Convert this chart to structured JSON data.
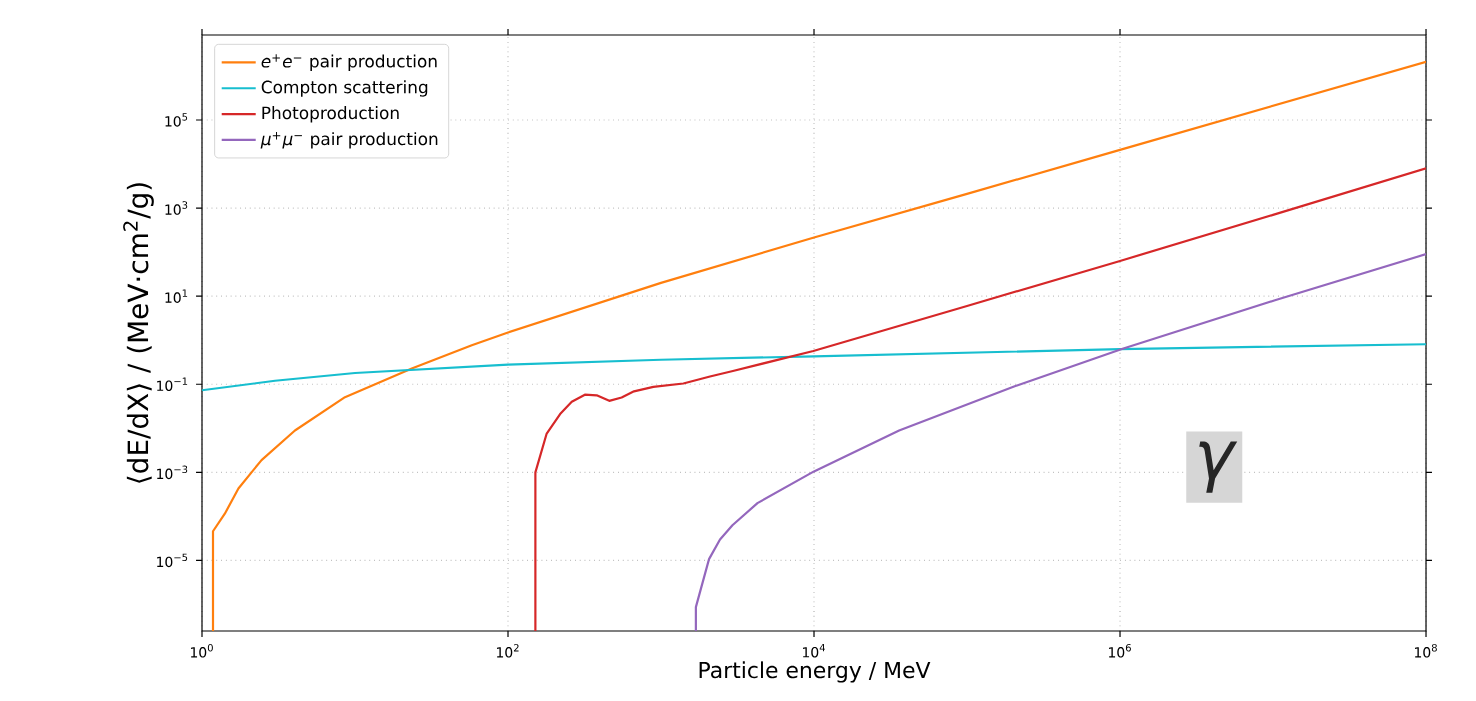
{
  "chart_data": {
    "type": "line",
    "xlabel": "Particle energy / MeV",
    "ylabel": "⟨dE/dX⟩ / (MeV·cm$^{2}$/g)",
    "annotations": [
      "γ"
    ],
    "log": "xy",
    "grid": true,
    "legend": "top left",
    "xlim": [
      1,
      100000000
    ],
    "ylim": [
      2.5e-07,
      8500000.0
    ],
    "xticks": [
      {
        "value": 1,
        "label": "10$^{0}$"
      },
      {
        "value": 100,
        "label": "10$^{2}$"
      },
      {
        "value": 10000,
        "label": "10$^{4}$"
      },
      {
        "value": 1000000,
        "label": "10$^{6}$"
      },
      {
        "value": 100000000,
        "label": "10$^{8}$"
      }
    ],
    "yticks": [
      {
        "value": 1e-05,
        "label": "10$^{−5}$"
      },
      {
        "value": 0.001,
        "label": "10$^{−3}$"
      },
      {
        "value": 0.1,
        "label": "10$^{−1}$"
      },
      {
        "value": 10,
        "label": "10$^{1}$"
      },
      {
        "value": 1000,
        "label": "10$^{3}$"
      },
      {
        "value": 100000,
        "label": "10$^{5}$"
      }
    ],
    "series": [
      {
        "name": "*e*$^{+}$*e*$^{−}$ pair production",
        "color": "#ff7f0e",
        "x": [
          1.18,
          1.18,
          1.41,
          1.73,
          2.45,
          4.05,
          8.6,
          23.5,
          58,
          100,
          1000,
          10000,
          100000,
          1000000,
          10000000,
          100000000
        ],
        "values": [
          2.5e-07,
          4.6e-05,
          0.000115,
          0.00043,
          0.0019,
          0.0089,
          0.051,
          0.227,
          0.77,
          1.5,
          20,
          214,
          2100,
          21000,
          210000,
          2100000
        ]
      },
      {
        "name": "Compton scattering",
        "color": "#17becf",
        "x": [
          1,
          3,
          10,
          100,
          1000,
          10000,
          1000000,
          100000000
        ],
        "values": [
          0.073,
          0.12,
          0.18,
          0.28,
          0.36,
          0.43,
          0.63,
          0.81
        ]
      },
      {
        "name": "Photoproduction",
        "color": "#d62728",
        "x": [
          151,
          151,
          179,
          219,
          261,
          318,
          380,
          459,
          553,
          666,
          891,
          1400,
          2090,
          2950,
          9900,
          100000,
          1000000,
          10000000,
          100000000
        ],
        "values": [
          2.5e-07,
          0.001,
          0.0076,
          0.021,
          0.04,
          0.058,
          0.056,
          0.042,
          0.05,
          0.069,
          0.087,
          0.104,
          0.15,
          0.2,
          0.57,
          6,
          63,
          700,
          8000
        ]
      },
      {
        "name": "*μ*$^{+}$*μ*$^{−}$ pair production",
        "color": "#9467bd",
        "x": [
          1690,
          1690,
          2060,
          2430,
          2930,
          4270,
          10000,
          36000,
          205000,
          1040000,
          10300000,
          100000000
        ],
        "values": [
          2.5e-07,
          8.7e-07,
          1.07e-05,
          3e-05,
          6.3e-05,
          0.0002,
          0.00105,
          0.0089,
          0.09,
          0.64,
          8.1,
          90
        ]
      }
    ]
  }
}
